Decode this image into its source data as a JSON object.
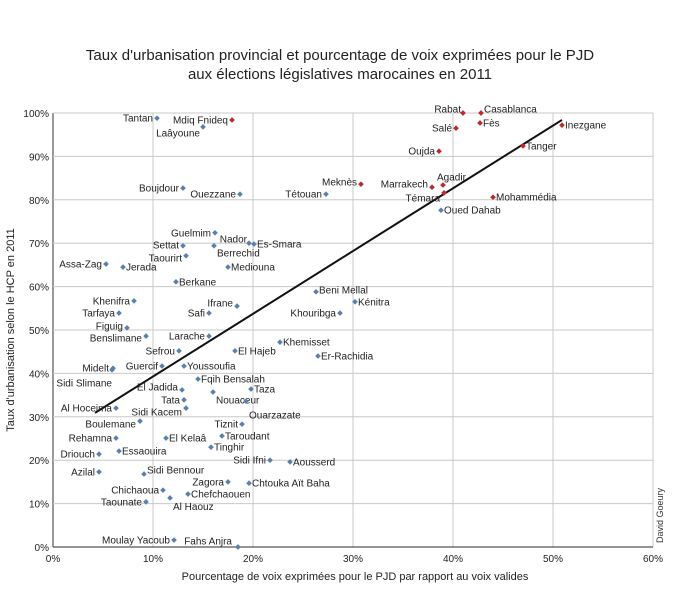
{
  "chart_data": {
    "type": "scatter",
    "title": [
      "Taux d'urbanisation provincial et pourcentage de voix exprimées pour le PJD",
      "aux élections législatives marocaines en 2011"
    ],
    "xlabel": "Pourcentage de voix exprimées pour le PJD par rapport au voix valides",
    "ylabel": "Taux d'urbanisation selon le HCP en 2011",
    "credit": "David Goeury",
    "xlim": [
      0,
      60
    ],
    "ylim": [
      0,
      100
    ],
    "x_ticks": [
      "0%",
      "10%",
      "20%",
      "30%",
      "40%",
      "50%",
      "60%"
    ],
    "y_ticks": [
      "0%",
      "10%",
      "20%",
      "30%",
      "40%",
      "50%",
      "60%",
      "70%",
      "80%",
      "90%",
      "100%"
    ],
    "grid": true,
    "colors": {
      "default": "#5b7fae",
      "highlight": "#c0282d",
      "trendline": "#111111"
    },
    "trendline": {
      "x": [
        4.2,
        50.9
      ],
      "y": [
        30.9,
        98.4
      ]
    },
    "points": [
      {
        "label": "Tantan",
        "x": 10.4,
        "y": 98.8,
        "highlight": false
      },
      {
        "label": "Mdiq Fnideq",
        "x": 17.9,
        "y": 98.4,
        "highlight": true
      },
      {
        "label": "Laâyoune",
        "x": 15.0,
        "y": 96.8,
        "highlight": false
      },
      {
        "label": "Boujdour",
        "x": 13.0,
        "y": 82.7,
        "highlight": false
      },
      {
        "label": "Ouezzane",
        "x": 18.7,
        "y": 81.3,
        "highlight": false
      },
      {
        "label": "Tétouan",
        "x": 27.3,
        "y": 81.3,
        "highlight": false
      },
      {
        "label": "Guelmim",
        "x": 16.2,
        "y": 72.4,
        "highlight": false
      },
      {
        "label": "Nador",
        "x": 19.6,
        "y": 70.0,
        "highlight": false
      },
      {
        "label": "Es-Smara",
        "x": 20.1,
        "y": 69.8,
        "highlight": false
      },
      {
        "label": "Settat",
        "x": 13.0,
        "y": 69.4,
        "highlight": false
      },
      {
        "label": "Berrechid",
        "x": 16.1,
        "y": 69.4,
        "highlight": false
      },
      {
        "label": "Taourirt",
        "x": 13.3,
        "y": 67.1,
        "highlight": false
      },
      {
        "label": "Assa-Zag",
        "x": 5.3,
        "y": 65.2,
        "highlight": false
      },
      {
        "label": "Jerada",
        "x": 7.0,
        "y": 64.5,
        "highlight": false
      },
      {
        "label": "Mediouna",
        "x": 17.5,
        "y": 64.5,
        "highlight": false
      },
      {
        "label": "Berkane",
        "x": 12.3,
        "y": 61.1,
        "highlight": false
      },
      {
        "label": "Khenifra",
        "x": 8.1,
        "y": 56.7,
        "highlight": false
      },
      {
        "label": "Ifrane",
        "x": 18.4,
        "y": 55.5,
        "highlight": false
      },
      {
        "label": "Tarfaya",
        "x": 6.6,
        "y": 53.9,
        "highlight": false
      },
      {
        "label": "Safi",
        "x": 15.6,
        "y": 53.9,
        "highlight": false
      },
      {
        "label": "Khouribga",
        "x": 28.7,
        "y": 53.9,
        "highlight": false
      },
      {
        "label": "Beni Mellal",
        "x": 26.3,
        "y": 58.8,
        "highlight": false
      },
      {
        "label": "Kénitra",
        "x": 30.2,
        "y": 56.5,
        "highlight": false
      },
      {
        "label": "Figuig",
        "x": 7.4,
        "y": 50.5,
        "highlight": false
      },
      {
        "label": "Benslimane",
        "x": 9.3,
        "y": 48.6,
        "highlight": false
      },
      {
        "label": "Larache",
        "x": 15.6,
        "y": 48.6,
        "highlight": false
      },
      {
        "label": "Khemisset",
        "x": 22.7,
        "y": 47.2,
        "highlight": false
      },
      {
        "label": "Sefrou",
        "x": 12.6,
        "y": 45.2,
        "highlight": false
      },
      {
        "label": "El Hajeb",
        "x": 18.2,
        "y": 45.2,
        "highlight": false
      },
      {
        "label": "Er-Rachidia",
        "x": 26.5,
        "y": 44.0,
        "highlight": false
      },
      {
        "label": "Midelt",
        "x": 6.0,
        "y": 41.2,
        "highlight": false
      },
      {
        "label": "Sidi Slimane",
        "x": 5.9,
        "y": 40.8,
        "highlight": false
      },
      {
        "label": "Guercif",
        "x": 10.9,
        "y": 41.7,
        "highlight": false
      },
      {
        "label": "Youssoufia",
        "x": 13.1,
        "y": 41.7,
        "highlight": false
      },
      {
        "label": "Fqih Bensalah",
        "x": 14.5,
        "y": 38.7,
        "highlight": false
      },
      {
        "label": "El Jadida",
        "x": 12.9,
        "y": 36.2,
        "highlight": false
      },
      {
        "label": "Nouaceur",
        "x": 16.0,
        "y": 35.7,
        "highlight": false
      },
      {
        "label": "Taza",
        "x": 19.8,
        "y": 36.4,
        "highlight": false
      },
      {
        "label": "Tata",
        "x": 13.1,
        "y": 33.9,
        "highlight": false
      },
      {
        "label": "Ouarzazate",
        "x": 19.3,
        "y": 33.6,
        "highlight": false
      },
      {
        "label": "Al Hoceima",
        "x": 6.3,
        "y": 32.0,
        "highlight": false
      },
      {
        "label": "Sidi Kacem",
        "x": 13.3,
        "y": 32.0,
        "highlight": false
      },
      {
        "label": "Boulemane",
        "x": 8.7,
        "y": 29.0,
        "highlight": false
      },
      {
        "label": "Tiznit",
        "x": 18.9,
        "y": 28.3,
        "highlight": false
      },
      {
        "label": "Rehamna",
        "x": 6.3,
        "y": 25.1,
        "highlight": false
      },
      {
        "label": "El Kelaâ",
        "x": 11.3,
        "y": 25.1,
        "highlight": false
      },
      {
        "label": "Taroudant",
        "x": 16.9,
        "y": 25.6,
        "highlight": false
      },
      {
        "label": "Tinghir",
        "x": 15.8,
        "y": 23.0,
        "highlight": false
      },
      {
        "label": "Essaouira",
        "x": 6.6,
        "y": 22.1,
        "highlight": false
      },
      {
        "label": "Driouch",
        "x": 4.6,
        "y": 21.4,
        "highlight": false
      },
      {
        "label": "Sidi Ifni",
        "x": 21.7,
        "y": 20.0,
        "highlight": false
      },
      {
        "label": "Aousserd",
        "x": 23.7,
        "y": 19.6,
        "highlight": false
      },
      {
        "label": "Azilal",
        "x": 4.6,
        "y": 17.3,
        "highlight": false
      },
      {
        "label": "Sidi Bennour",
        "x": 9.1,
        "y": 16.8,
        "highlight": false
      },
      {
        "label": "Zagora",
        "x": 17.5,
        "y": 15.0,
        "highlight": false
      },
      {
        "label": "Chtouka Aït Baha",
        "x": 19.6,
        "y": 14.7,
        "highlight": false
      },
      {
        "label": "Chichaoua",
        "x": 11.0,
        "y": 13.1,
        "highlight": false
      },
      {
        "label": "Chefchaouen",
        "x": 13.5,
        "y": 12.2,
        "highlight": false
      },
      {
        "label": "Al Haouz",
        "x": 11.7,
        "y": 11.3,
        "highlight": false
      },
      {
        "label": "Taounate",
        "x": 9.3,
        "y": 10.4,
        "highlight": false
      },
      {
        "label": "Moulay Yacoub",
        "x": 12.1,
        "y": 1.6,
        "highlight": false
      },
      {
        "label": "Fahs Anjra",
        "x": 18.5,
        "y": 0.0,
        "highlight": false
      },
      {
        "label": "Rabat",
        "x": 41.0,
        "y": 100.0,
        "highlight": true
      },
      {
        "label": "Casablanca",
        "x": 42.8,
        "y": 100.0,
        "highlight": true
      },
      {
        "label": "Salé",
        "x": 40.3,
        "y": 96.5,
        "highlight": true
      },
      {
        "label": "Fès",
        "x": 42.7,
        "y": 97.7,
        "highlight": true
      },
      {
        "label": "Inezgane",
        "x": 50.9,
        "y": 97.2,
        "highlight": true
      },
      {
        "label": "Oujda",
        "x": 38.6,
        "y": 91.2,
        "highlight": true
      },
      {
        "label": "Tanger",
        "x": 47.0,
        "y": 92.4,
        "highlight": true
      },
      {
        "label": "Meknès",
        "x": 30.8,
        "y": 83.6,
        "highlight": true
      },
      {
        "label": "Marrakech",
        "x": 37.9,
        "y": 82.9,
        "highlight": true
      },
      {
        "label": "Agadir",
        "x": 39.0,
        "y": 83.4,
        "highlight": true
      },
      {
        "label": "Témara",
        "x": 39.1,
        "y": 81.6,
        "highlight": true
      },
      {
        "label": "Mohammédia",
        "x": 44.0,
        "y": 80.6,
        "highlight": true
      },
      {
        "label": "Oued Dahab",
        "x": 38.8,
        "y": 77.6,
        "highlight": false
      }
    ]
  }
}
